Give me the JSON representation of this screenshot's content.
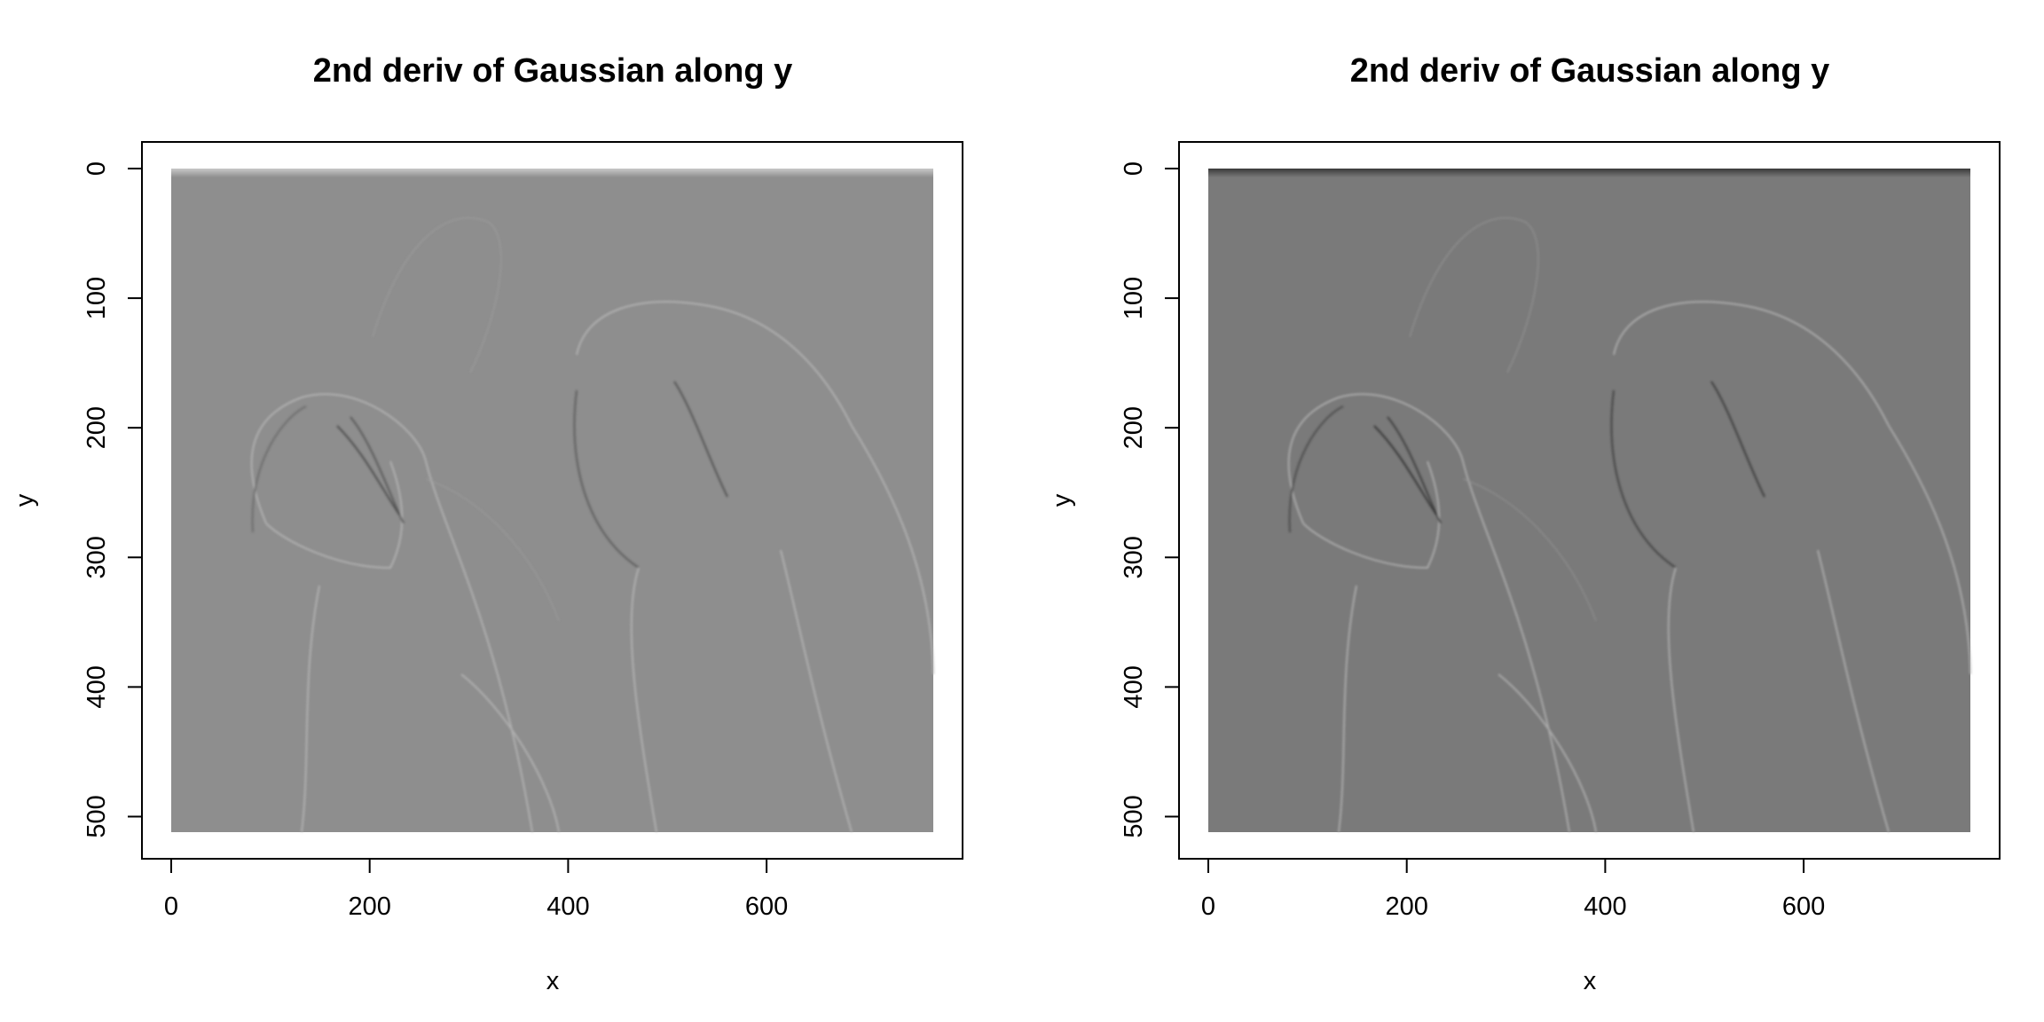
{
  "chart_data": [
    {
      "type": "heatmap",
      "title": "2nd deriv of Gaussian along y",
      "xlabel": "x",
      "ylabel": "y",
      "xlim": [
        -30,
        800
      ],
      "ylim": [
        530,
        -15
      ],
      "y_reversed": true,
      "xticks": [
        0,
        200,
        400,
        600
      ],
      "yticks": [
        0,
        100,
        200,
        300,
        400,
        500
      ],
      "image_extent": {
        "x": [
          0,
          768
        ],
        "y": [
          0,
          512
        ]
      },
      "background_gray": "#8e8e8e",
      "rendering": "image of two macaws, second derivative of Gaussian filter along y, light background"
    },
    {
      "type": "heatmap",
      "title": "2nd deriv of Gaussian along y",
      "xlabel": "x",
      "ylabel": "y",
      "xlim": [
        -30,
        800
      ],
      "ylim": [
        530,
        -15
      ],
      "y_reversed": true,
      "xticks": [
        0,
        200,
        400,
        600
      ],
      "yticks": [
        0,
        100,
        200,
        300,
        400,
        500
      ],
      "image_extent": {
        "x": [
          0,
          768
        ],
        "y": [
          0,
          512
        ]
      },
      "background_gray": "#7a7a7a",
      "rendering": "image of two macaws, second derivative of Gaussian filter along y, darker background"
    }
  ]
}
